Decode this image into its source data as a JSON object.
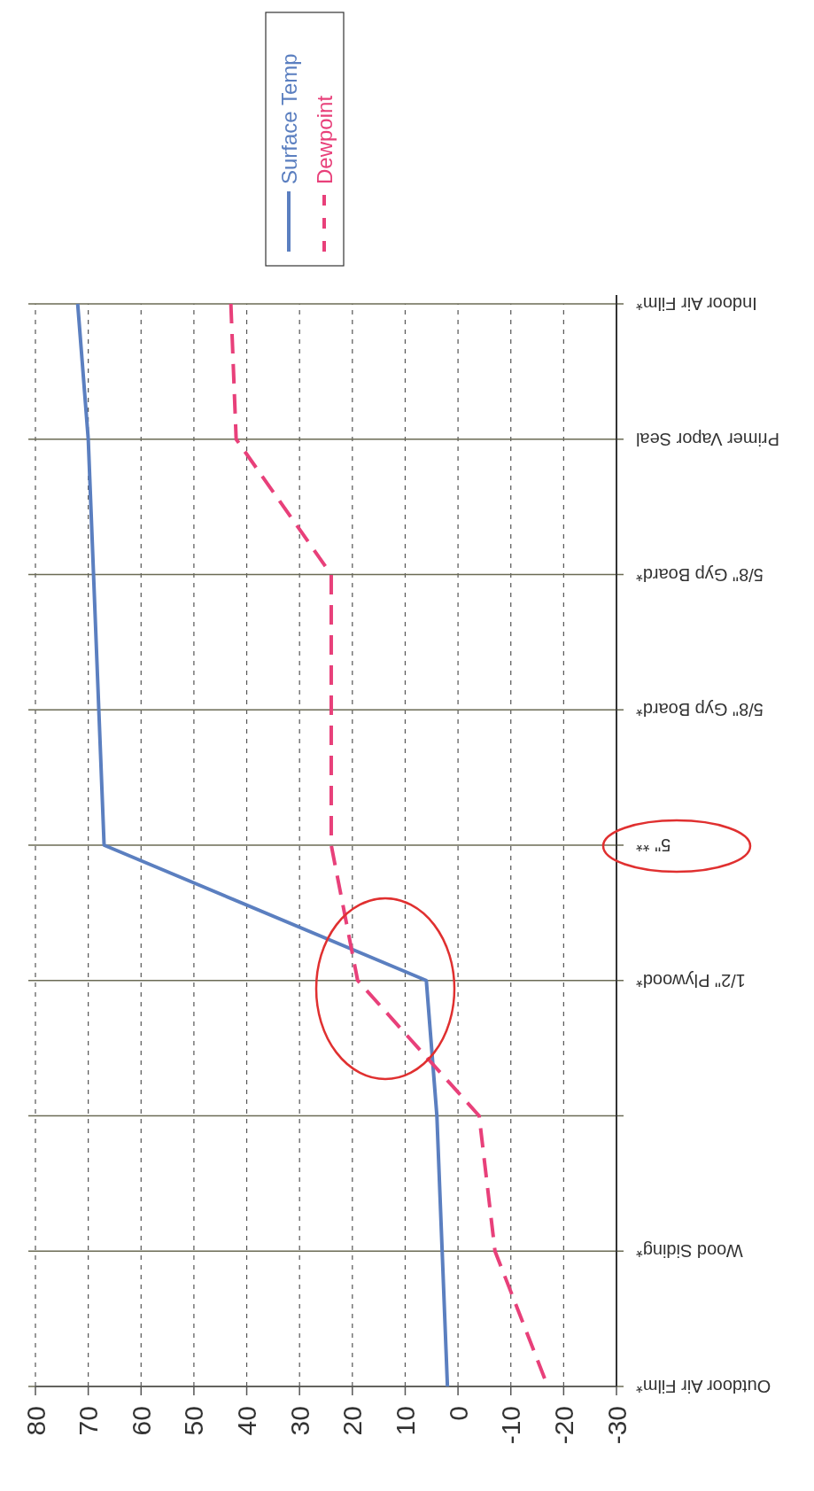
{
  "chart_data": {
    "type": "line",
    "orientation": "horizontal",
    "categories": [
      "Indoor Air Film*",
      "Primer Vapor Seal",
      "5/8\" Gyp Board*",
      "5/8\" Gyp Board*",
      "5\" **",
      "1/2\" Plywood*",
      null,
      "Wood Siding*",
      "Outdoor Air Film*"
    ],
    "series": [
      {
        "name": "Surface Temp",
        "color": "#5b7fc0",
        "line_style": "solid",
        "values": [
          72,
          70,
          69,
          68,
          67,
          6,
          4,
          3,
          2
        ]
      },
      {
        "name": "Dewpoint",
        "color": "#e8407a",
        "line_style": "dashed",
        "values": [
          43,
          42,
          24,
          24,
          24,
          19,
          -4,
          -7,
          -17
        ]
      }
    ],
    "xlim": [
      80,
      -30
    ],
    "xticks": [
      80,
      70,
      60,
      50,
      40,
      30,
      20,
      10,
      0,
      -10,
      -20,
      -30
    ],
    "grid": true,
    "legend": "right",
    "marker": "none"
  }
}
